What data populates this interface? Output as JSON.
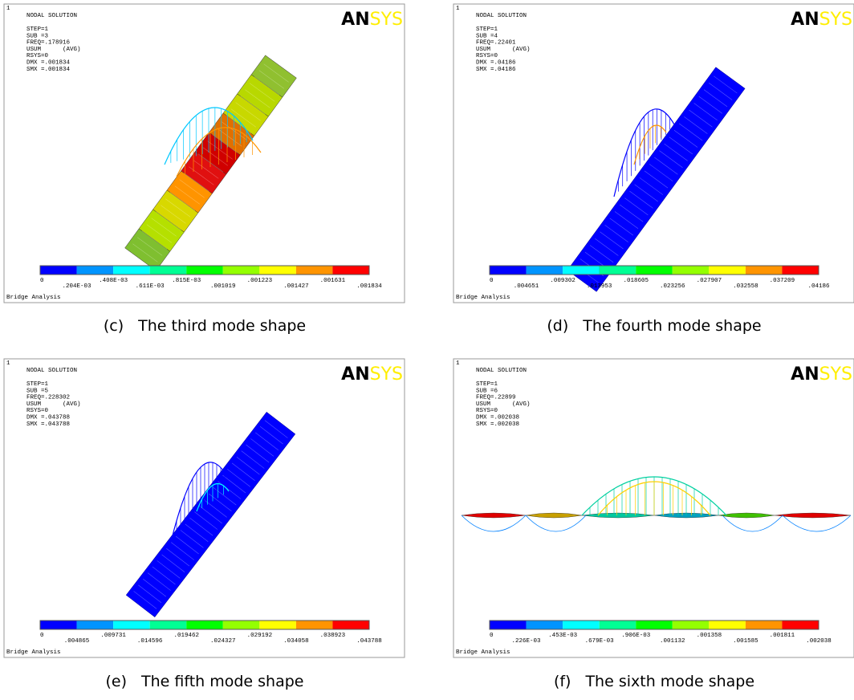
{
  "panels": [
    {
      "window_number": "1",
      "title": "NODAL SOLUTION",
      "info": [
        "STEP=1",
        "SUB =3",
        "FREQ=.178916",
        "USUM      (AVG)",
        "RSYS=0",
        "DMX =.001834",
        "SMX =.001834"
      ],
      "logo": {
        "dark": "AN",
        "light": "SYS"
      },
      "legend_labels": [
        "0",
        ".204E-03",
        ".408E-03",
        ".611E-03",
        ".815E-03",
        ".001019",
        ".001223",
        ".001427",
        ".001631",
        ".001834"
      ],
      "footer": "Bridge Analysis",
      "caption_label": "(c)",
      "caption": "The third mode shape"
    },
    {
      "window_number": "1",
      "title": "NODAL SOLUTION",
      "info": [
        "STEP=1",
        "SUB =4",
        "FREQ=.22401",
        "USUM      (AVG)",
        "RSYS=0",
        "DMX =.04186",
        "SMX =.04186"
      ],
      "logo": {
        "dark": "AN",
        "light": "SYS"
      },
      "legend_labels": [
        "0",
        ".004651",
        ".009302",
        ".013953",
        ".018605",
        ".023256",
        ".027907",
        ".032558",
        ".037209",
        ".04186"
      ],
      "footer": "Bridge Analysis",
      "caption_label": "(d)",
      "caption": "The fourth mode shape"
    },
    {
      "window_number": "1",
      "title": "NODAL SOLUTION",
      "info": [
        "STEP=1",
        "SUB =5",
        "FREQ=.228302",
        "USUM      (AVG)",
        "RSYS=0",
        "DMX =.043788",
        "SMX =.043788"
      ],
      "logo": {
        "dark": "AN",
        "light": "SYS"
      },
      "legend_labels": [
        "0",
        ".004865",
        ".009731",
        ".014596",
        ".019462",
        ".024327",
        ".029192",
        ".034058",
        ".038923",
        ".043788"
      ],
      "footer": "Bridge Analysis",
      "caption_label": "(e)",
      "caption": "The fifth mode shape"
    },
    {
      "window_number": "1",
      "title": "NODAL SOLUTION",
      "info": [
        "STEP=1",
        "SUB =6",
        "FREQ=.22899",
        "USUM      (AVG)",
        "RSYS=0",
        "DMX =.002038",
        "SMX =.002038"
      ],
      "logo": {
        "dark": "AN",
        "light": "SYS"
      },
      "legend_labels": [
        "0",
        ".226E-03",
        ".453E-03",
        ".679E-03",
        ".906E-03",
        ".001132",
        ".001358",
        ".001585",
        ".001811",
        ".002038"
      ],
      "footer": "Bridge Analysis",
      "caption_label": "(f)",
      "caption": "The sixth mode shape"
    }
  ]
}
